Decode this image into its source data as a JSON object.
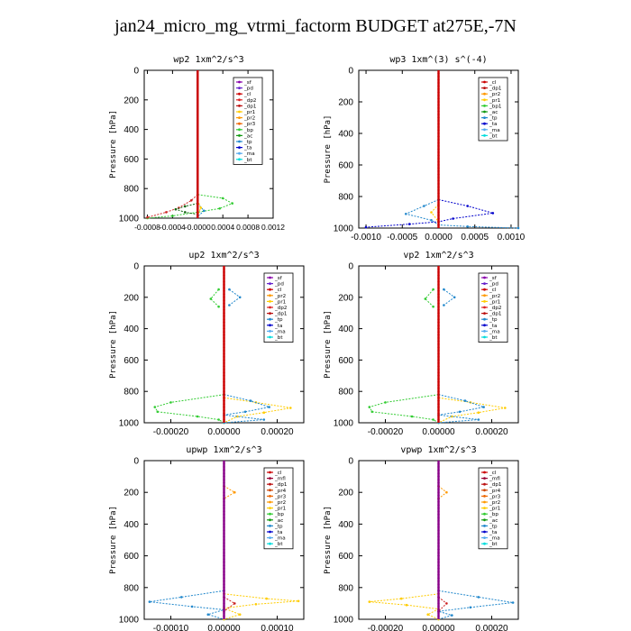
{
  "page": {
    "title": "jan24_micro_mg_vtrmi_factorm  BUDGET at275E,-7N"
  },
  "chart_data": [
    {
      "type": "line",
      "title": "wp2   1xm^2/s^3",
      "ylabel": "Pressure [hPa]",
      "ylim": [
        1000,
        0
      ],
      "xlim": [
        -0.00085,
        0.0012
      ],
      "xticks": [
        -0.0008,
        -0.0004,
        0.0,
        0.0004,
        0.0008,
        0.0012
      ],
      "xtick_labels": [
        "-0.0008",
        "-0.0004",
        "-0.0000",
        "0.0004",
        "0.0008",
        "0.0012"
      ],
      "yticks": [
        0,
        200,
        400,
        600,
        800,
        1000
      ],
      "legend": [
        "_sf",
        "_pd",
        "_cl",
        "_dp2",
        "_dp1",
        "_pr1",
        "_pr2",
        "_pr3",
        "_bp",
        "_ac",
        "_tp",
        "_ta",
        "_ma",
        "_bt"
      ],
      "series": [
        {
          "name": "_bp",
          "color": "#33cc33",
          "points": [
            [
              0.0,
              840
            ],
            [
              0.0004,
              865
            ],
            [
              0.00055,
              900
            ],
            [
              0.00035,
              935
            ],
            [
              0.0,
              960
            ],
            [
              -0.0004,
              985
            ],
            [
              -0.0008,
              1000
            ]
          ]
        },
        {
          "name": "_dp1",
          "color": "#cc2222",
          "points": [
            [
              0.0,
              840
            ],
            [
              -0.0001,
              880
            ],
            [
              -0.0003,
              930
            ],
            [
              -0.0005,
              960
            ],
            [
              -0.0008,
              995
            ]
          ]
        },
        {
          "name": "_ac",
          "color": "#116611",
          "points": [
            [
              0.0,
              900
            ],
            [
              -0.0002,
              920
            ],
            [
              -0.00035,
              940
            ],
            [
              -0.0002,
              960
            ],
            [
              0.0,
              975
            ]
          ]
        },
        {
          "name": "_tp",
          "color": "#2288cc",
          "points": [
            [
              0.0,
              900
            ],
            [
              0.0001,
              950
            ],
            [
              0.0,
              990
            ]
          ]
        },
        {
          "name": "_pr1",
          "color": "#ffcc00",
          "points": [
            [
              0.0,
              880
            ],
            [
              5e-05,
              930
            ],
            [
              0.0,
              980
            ]
          ]
        },
        {
          "name": "_sf",
          "color": "#880088",
          "points": [
            [
              0.0,
              0
            ],
            [
              0.0,
              1000
            ]
          ]
        },
        {
          "name": "_cl",
          "color": "#cc0000",
          "points": [
            [
              0.0,
              0
            ],
            [
              0.0,
              1000
            ]
          ]
        }
      ]
    },
    {
      "type": "line",
      "title": "wp3   1xm^(3) s^(-4)",
      "ylabel": "Pressure [hPa]",
      "ylim": [
        1000,
        0
      ],
      "xlim": [
        -0.0011,
        0.0011
      ],
      "xticks": [
        -0.001,
        -0.0005,
        0.0,
        0.0005,
        0.001
      ],
      "xtick_labels": [
        "-0.0010",
        "-0.0005",
        "0.0000",
        "0.0005",
        "0.0010"
      ],
      "yticks": [
        0,
        200,
        400,
        600,
        800,
        1000
      ],
      "legend": [
        "_cl",
        "_dp1",
        "_pr2",
        "_pr1",
        "_bp1",
        "_ac",
        "_tp",
        "_ta",
        "_ma",
        "_bt"
      ],
      "series": [
        {
          "name": "_ta",
          "color": "#0000cc",
          "points": [
            [
              0.0,
              820
            ],
            [
              0.0004,
              860
            ],
            [
              0.00075,
              905
            ],
            [
              0.0002,
              940
            ],
            [
              0.0,
              960
            ],
            [
              -0.0004,
              975
            ],
            [
              -0.001,
              995
            ]
          ]
        },
        {
          "name": "_tp",
          "color": "#2288cc",
          "points": [
            [
              0.0,
              820
            ],
            [
              -0.0002,
              860
            ],
            [
              -0.00045,
              910
            ],
            [
              -0.0001,
              950
            ],
            [
              0.0,
              980
            ],
            [
              0.0004,
              990
            ],
            [
              0.0011,
              1000
            ]
          ]
        },
        {
          "name": "_pr2",
          "color": "#ffcc00",
          "points": [
            [
              0.0,
              850
            ],
            [
              -0.0001,
              900
            ],
            [
              0.0,
              960
            ]
          ]
        },
        {
          "name": "_cl",
          "color": "#cc0000",
          "points": [
            [
              0.0,
              0
            ],
            [
              0.0,
              1000
            ]
          ]
        }
      ]
    },
    {
      "type": "line",
      "title": "up2   1xm^2/s^3",
      "ylabel": "Pressure [hPa]",
      "ylim": [
        1000,
        0
      ],
      "xlim": [
        -0.0003,
        0.0003
      ],
      "xticks": [
        -0.0002,
        0.0,
        0.0002
      ],
      "xtick_labels": [
        "-0.00020",
        "0.00000",
        "0.00020"
      ],
      "yticks": [
        0,
        200,
        400,
        600,
        800,
        1000
      ],
      "legend": [
        "_sf",
        "_pd",
        "_cl",
        "_pr2",
        "_pr1",
        "_dp2",
        "_dp1",
        "_tp",
        "_ta",
        "_ma",
        "_bt"
      ],
      "series": [
        {
          "name": "_dp1",
          "color": "#33cc33",
          "points": [
            [
              0.0,
              820
            ],
            [
              -0.0002,
              870
            ],
            [
              -0.00026,
              900
            ],
            [
              -0.00025,
              930
            ],
            [
              -0.0001,
              960
            ],
            [
              -2e-05,
              980
            ],
            [
              0.0,
              1000
            ]
          ]
        },
        {
          "name": "_pr1",
          "color": "#ffcc00",
          "points": [
            [
              0.0,
              840
            ],
            [
              0.00012,
              870
            ],
            [
              0.00025,
              905
            ],
            [
              0.00015,
              935
            ],
            [
              5e-05,
              960
            ],
            [
              0.0,
              1000
            ]
          ]
        },
        {
          "name": "_tp",
          "color": "#2288cc",
          "points": [
            [
              0.0,
              820
            ],
            [
              0.0001,
              860
            ],
            [
              0.00017,
              900
            ],
            [
              8e-05,
              930
            ],
            [
              0.0,
              950
            ],
            [
              0.00015,
              980
            ],
            [
              0.0,
              1000
            ]
          ]
        },
        {
          "name": "_tp",
          "color": "#2288cc",
          "points": [
            [
              2e-05,
              150
            ],
            [
              6e-05,
              200
            ],
            [
              2e-05,
              250
            ]
          ]
        },
        {
          "name": "_dp1",
          "color": "#33cc33",
          "points": [
            [
              -2e-05,
              150
            ],
            [
              -5e-05,
              210
            ],
            [
              -2e-05,
              260
            ]
          ]
        },
        {
          "name": "_cl",
          "color": "#cc0000",
          "points": [
            [
              0.0,
              0
            ],
            [
              0.0,
              1000
            ]
          ]
        }
      ]
    },
    {
      "type": "line",
      "title": "vp2   1xm^2/s^3",
      "ylabel": "Pressure [hPa]",
      "ylim": [
        1000,
        0
      ],
      "xlim": [
        -0.0003,
        0.0003
      ],
      "xticks": [
        -0.0002,
        0.0,
        0.0002
      ],
      "xtick_labels": [
        "-0.00020",
        "0.00000",
        "0.00020"
      ],
      "yticks": [
        0,
        200,
        400,
        600,
        800,
        1000
      ],
      "legend": [
        "_sf",
        "_pd",
        "_cl",
        "_pr2",
        "_pr1",
        "_dp2",
        "_dp1",
        "_tp",
        "_ta",
        "_ma",
        "_bt"
      ],
      "series": [
        {
          "name": "_dp1",
          "color": "#33cc33",
          "points": [
            [
              0.0,
              820
            ],
            [
              -0.0002,
              870
            ],
            [
              -0.00026,
              900
            ],
            [
              -0.00025,
              930
            ],
            [
              -0.0001,
              960
            ],
            [
              -2e-05,
              980
            ],
            [
              0.0,
              1000
            ]
          ]
        },
        {
          "name": "_pr1",
          "color": "#ffcc00",
          "points": [
            [
              0.0,
              840
            ],
            [
              0.00012,
              870
            ],
            [
              0.00025,
              905
            ],
            [
              0.00015,
              935
            ],
            [
              5e-05,
              960
            ],
            [
              0.0,
              1000
            ]
          ]
        },
        {
          "name": "_tp",
          "color": "#2288cc",
          "points": [
            [
              0.0,
              820
            ],
            [
              0.0001,
              860
            ],
            [
              0.00017,
              900
            ],
            [
              8e-05,
              930
            ],
            [
              0.0,
              950
            ],
            [
              0.00015,
              980
            ],
            [
              0.0,
              1000
            ]
          ]
        },
        {
          "name": "_tp",
          "color": "#2288cc",
          "points": [
            [
              2e-05,
              150
            ],
            [
              6e-05,
              200
            ],
            [
              2e-05,
              250
            ]
          ]
        },
        {
          "name": "_dp1",
          "color": "#33cc33",
          "points": [
            [
              -2e-05,
              150
            ],
            [
              -5e-05,
              210
            ],
            [
              -2e-05,
              260
            ]
          ]
        },
        {
          "name": "_cl",
          "color": "#cc0000",
          "points": [
            [
              0.0,
              0
            ],
            [
              0.0,
              1000
            ]
          ]
        }
      ]
    },
    {
      "type": "line",
      "title": "upwp   1xm^2/s^3",
      "ylabel": "Pressure [hPa]",
      "ylim": [
        1000,
        0
      ],
      "xlim": [
        -0.00015,
        0.00015
      ],
      "xticks": [
        -0.0001,
        0.0,
        0.0001
      ],
      "xtick_labels": [
        "-0.00010",
        "0.00000",
        "0.00010"
      ],
      "yticks": [
        0,
        200,
        400,
        600,
        800,
        1000
      ],
      "legend": [
        "_cl",
        "_mfl",
        "_dp1",
        "_pr4",
        "_pr3",
        "_pr2",
        "_pr1",
        "_bp",
        "_ac",
        "_tp",
        "_ta",
        "_ma",
        "_bt"
      ],
      "series": [
        {
          "name": "_tp",
          "color": "#2288cc",
          "points": [
            [
              0.0,
              820
            ],
            [
              -8e-05,
              860
            ],
            [
              -0.00014,
              890
            ],
            [
              -6e-05,
              920
            ],
            [
              0.0,
              940
            ],
            [
              -3e-05,
              970
            ],
            [
              0.0,
              1000
            ]
          ]
        },
        {
          "name": "_pr1",
          "color": "#ffcc00",
          "points": [
            [
              0.0,
              840
            ],
            [
              8e-05,
              870
            ],
            [
              0.00014,
              885
            ],
            [
              6e-05,
              905
            ],
            [
              0.0,
              930
            ],
            [
              3e-05,
              970
            ],
            [
              0.0,
              1000
            ]
          ]
        },
        {
          "name": "_dp1",
          "color": "#cc2222",
          "points": [
            [
              0.0,
              860
            ],
            [
              2e-05,
              900
            ],
            [
              0.0,
              950
            ]
          ]
        },
        {
          "name": "_pr2",
          "color": "#ff9900",
          "points": [
            [
              0.0,
              160
            ],
            [
              2e-05,
              200
            ],
            [
              0.0,
              240
            ]
          ]
        },
        {
          "name": "_cl",
          "color": "#880088",
          "points": [
            [
              0.0,
              0
            ],
            [
              0.0,
              1000
            ]
          ]
        }
      ]
    },
    {
      "type": "line",
      "title": "vpwp   1xm^2/s^3",
      "ylabel": "Pressure [hPa]",
      "ylim": [
        1000,
        0
      ],
      "xlim": [
        -0.0003,
        0.0003
      ],
      "xticks": [
        -0.0002,
        0.0,
        0.0002
      ],
      "xtick_labels": [
        "-0.00020",
        "0.00000",
        "0.00020"
      ],
      "yticks": [
        0,
        200,
        400,
        600,
        800,
        1000
      ],
      "legend": [
        "_cl",
        "_mfl",
        "_dp1",
        "_pr4",
        "_pr3",
        "_pr2",
        "_pr1",
        "_bp",
        "_ac",
        "_tp",
        "_ta",
        "_ma",
        "_bt"
      ],
      "series": [
        {
          "name": "_tp",
          "color": "#2288cc",
          "points": [
            [
              0.0,
              820
            ],
            [
              0.00015,
              860
            ],
            [
              0.00028,
              895
            ],
            [
              0.00012,
              925
            ],
            [
              0.0,
              950
            ],
            [
              5e-05,
              975
            ],
            [
              0.0,
              1000
            ]
          ]
        },
        {
          "name": "_pr1",
          "color": "#ffcc00",
          "points": [
            [
              0.0,
              840
            ],
            [
              -0.00014,
              870
            ],
            [
              -0.00026,
              890
            ],
            [
              -0.00012,
              910
            ],
            [
              0.0,
              935
            ],
            [
              -4e-05,
              970
            ],
            [
              0.0,
              1000
            ]
          ]
        },
        {
          "name": "_dp1",
          "color": "#cc2222",
          "points": [
            [
              0.0,
              860
            ],
            [
              3e-05,
              900
            ],
            [
              0.0,
              950
            ]
          ]
        },
        {
          "name": "_pr2",
          "color": "#ff9900",
          "points": [
            [
              0.0,
              160
            ],
            [
              3e-05,
              200
            ],
            [
              0.0,
              240
            ]
          ]
        },
        {
          "name": "_cl",
          "color": "#880088",
          "points": [
            [
              0.0,
              0
            ],
            [
              0.0,
              1000
            ]
          ]
        }
      ]
    }
  ]
}
